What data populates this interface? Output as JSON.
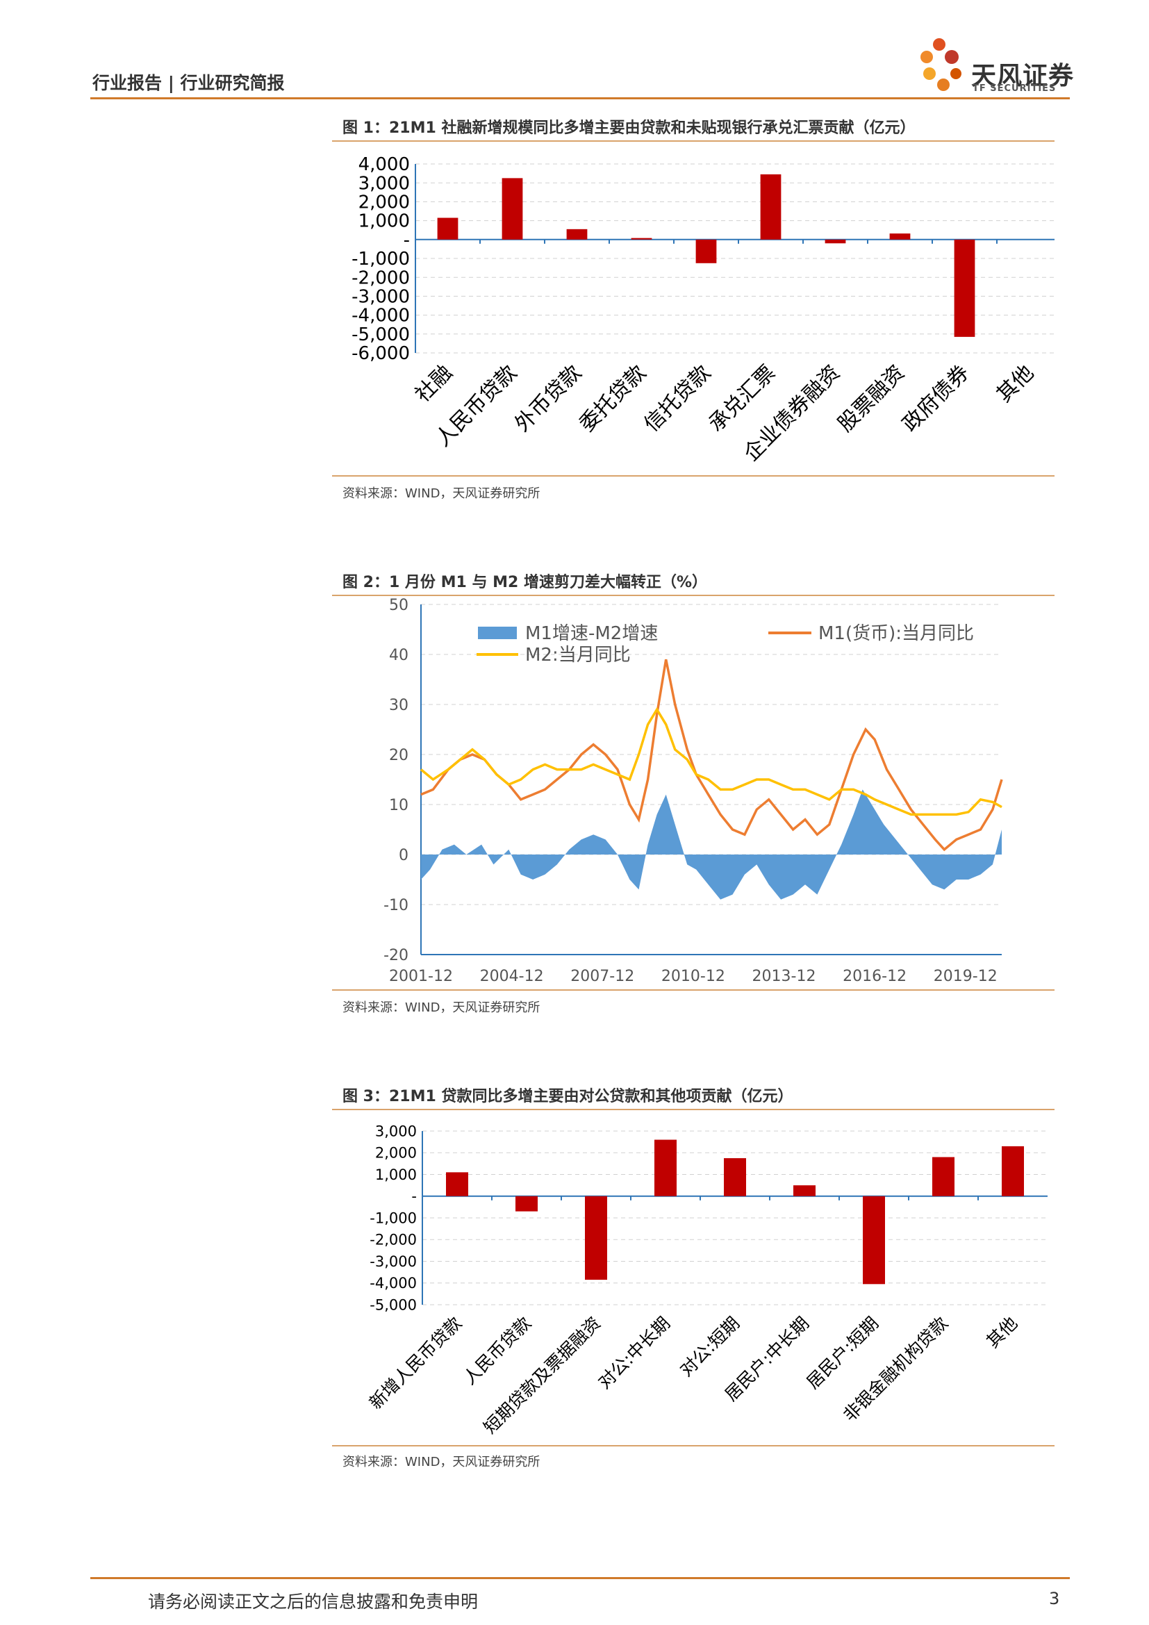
{
  "header": {
    "title": "行业报告 | 行业研究简报",
    "company_name": "天风证券",
    "company_en": "TF SECURITIES"
  },
  "figures": [
    {
      "title": "图 1：21M1 社融新增规模同比多增主要由贷款和未贴现银行承兑汇票贡献（亿元）",
      "source": "资料来源：WIND，天风证券研究所"
    },
    {
      "title": "图 2：1 月份 M1 与 M2 增速剪刀差大幅转正（%）",
      "source": "资料来源：WIND，天风证券研究所"
    },
    {
      "title": "图 3：21M1 贷款同比多增主要由对公贷款和其他项贡献（亿元）",
      "source": "资料来源：WIND，天风证券研究所"
    }
  ],
  "footer": {
    "disclaimer": "请务必阅读正文之后的信息披露和免责申明",
    "page_number": "3"
  },
  "colors": {
    "accent": "#d07a2a",
    "bar": "#c00000",
    "area": "#5b9bd5",
    "m1": "#ed7d31",
    "m2": "#ffc000"
  },
  "chart_data": [
    {
      "type": "bar",
      "categories": [
        "社融",
        "人民币贷款",
        "外币贷款",
        "委托贷款",
        "信托贷款",
        "承兑汇票",
        "企业债券融资",
        "股票融资",
        "政府债券",
        "其他"
      ],
      "values": [
        1150,
        3250,
        550,
        80,
        -1250,
        3450,
        -200,
        320,
        -5150,
        0
      ],
      "ylim": [
        -6000,
        4000
      ],
      "yticks": [
        4000,
        3000,
        2000,
        1000,
        0,
        -1000,
        -2000,
        -3000,
        -4000,
        -5000,
        -6000
      ],
      "ytick_labels": [
        "4,000",
        "3,000",
        "2,000",
        "1,000",
        "-",
        "-1,000",
        "-2,000",
        "-3,000",
        "-4,000",
        "-5,000",
        "-6,000"
      ],
      "grid": true
    },
    {
      "type": "line",
      "x_labels": [
        "2001-12",
        "2004-12",
        "2007-12",
        "2010-12",
        "2013-12",
        "2016-12",
        "2019-12"
      ],
      "ylim": [
        -20,
        50
      ],
      "yticks": [
        50,
        40,
        30,
        20,
        10,
        0,
        -10,
        -20
      ],
      "grid": true,
      "legend_position": "top",
      "series": [
        {
          "name": "M1增速-M2增速",
          "kind": "area",
          "points": [
            [
              2001.9,
              -5
            ],
            [
              2002.2,
              -3
            ],
            [
              2002.6,
              1
            ],
            [
              2003,
              2
            ],
            [
              2003.4,
              0
            ],
            [
              2003.9,
              2
            ],
            [
              2004.3,
              -2
            ],
            [
              2004.8,
              1
            ],
            [
              2005.2,
              -4
            ],
            [
              2005.6,
              -5
            ],
            [
              2006,
              -4
            ],
            [
              2006.4,
              -2
            ],
            [
              2006.8,
              1
            ],
            [
              2007.2,
              3
            ],
            [
              2007.6,
              4
            ],
            [
              2008,
              3
            ],
            [
              2008.4,
              0
            ],
            [
              2008.8,
              -5
            ],
            [
              2009.1,
              -7
            ],
            [
              2009.4,
              2
            ],
            [
              2009.7,
              8
            ],
            [
              2010,
              12
            ],
            [
              2010.3,
              6
            ],
            [
              2010.7,
              -2
            ],
            [
              2011,
              -3
            ],
            [
              2011.4,
              -6
            ],
            [
              2011.8,
              -9
            ],
            [
              2012.2,
              -8
            ],
            [
              2012.6,
              -4
            ],
            [
              2013,
              -2
            ],
            [
              2013.4,
              -6
            ],
            [
              2013.8,
              -9
            ],
            [
              2014.2,
              -8
            ],
            [
              2014.6,
              -6
            ],
            [
              2015,
              -8
            ],
            [
              2015.4,
              -3
            ],
            [
              2015.8,
              2
            ],
            [
              2016.2,
              8
            ],
            [
              2016.5,
              13
            ],
            [
              2016.8,
              10
            ],
            [
              2017.2,
              6
            ],
            [
              2017.6,
              3
            ],
            [
              2018,
              0
            ],
            [
              2018.4,
              -3
            ],
            [
              2018.8,
              -6
            ],
            [
              2019.2,
              -7
            ],
            [
              2019.6,
              -5
            ],
            [
              2020,
              -5
            ],
            [
              2020.4,
              -4
            ],
            [
              2020.8,
              -2
            ],
            [
              2021.1,
              5
            ]
          ]
        },
        {
          "name": "M1(货币):当月同比",
          "kind": "line",
          "points": [
            [
              2001.9,
              12
            ],
            [
              2002.3,
              13
            ],
            [
              2002.8,
              17
            ],
            [
              2003.2,
              19
            ],
            [
              2003.6,
              20
            ],
            [
              2004,
              19
            ],
            [
              2004.4,
              16
            ],
            [
              2004.8,
              14
            ],
            [
              2005.2,
              11
            ],
            [
              2005.6,
              12
            ],
            [
              2006,
              13
            ],
            [
              2006.4,
              15
            ],
            [
              2006.8,
              17
            ],
            [
              2007.2,
              20
            ],
            [
              2007.6,
              22
            ],
            [
              2008,
              20
            ],
            [
              2008.4,
              17
            ],
            [
              2008.8,
              10
            ],
            [
              2009.1,
              7
            ],
            [
              2009.4,
              15
            ],
            [
              2009.7,
              28
            ],
            [
              2010,
              39
            ],
            [
              2010.3,
              30
            ],
            [
              2010.7,
              21
            ],
            [
              2011,
              16
            ],
            [
              2011.4,
              12
            ],
            [
              2011.8,
              8
            ],
            [
              2012.2,
              5
            ],
            [
              2012.6,
              4
            ],
            [
              2013,
              9
            ],
            [
              2013.4,
              11
            ],
            [
              2013.8,
              8
            ],
            [
              2014.2,
              5
            ],
            [
              2014.6,
              7
            ],
            [
              2015,
              4
            ],
            [
              2015.4,
              6
            ],
            [
              2015.8,
              13
            ],
            [
              2016.2,
              20
            ],
            [
              2016.6,
              25
            ],
            [
              2016.9,
              23
            ],
            [
              2017.3,
              17
            ],
            [
              2017.7,
              13
            ],
            [
              2018.1,
              9
            ],
            [
              2018.5,
              6
            ],
            [
              2018.9,
              3
            ],
            [
              2019.2,
              1
            ],
            [
              2019.6,
              3
            ],
            [
              2020,
              4
            ],
            [
              2020.4,
              5
            ],
            [
              2020.8,
              9
            ],
            [
              2021.1,
              15
            ]
          ]
        },
        {
          "name": "M2:当月同比",
          "kind": "line",
          "points": [
            [
              2001.9,
              17
            ],
            [
              2002.3,
              15
            ],
            [
              2002.8,
              17
            ],
            [
              2003.2,
              19
            ],
            [
              2003.6,
              21
            ],
            [
              2004,
              19
            ],
            [
              2004.4,
              16
            ],
            [
              2004.8,
              14
            ],
            [
              2005.2,
              15
            ],
            [
              2005.6,
              17
            ],
            [
              2006,
              18
            ],
            [
              2006.4,
              17
            ],
            [
              2006.8,
              17
            ],
            [
              2007.2,
              17
            ],
            [
              2007.6,
              18
            ],
            [
              2008,
              17
            ],
            [
              2008.4,
              16
            ],
            [
              2008.8,
              15
            ],
            [
              2009.1,
              20
            ],
            [
              2009.4,
              26
            ],
            [
              2009.7,
              29
            ],
            [
              2010,
              26
            ],
            [
              2010.3,
              21
            ],
            [
              2010.7,
              19
            ],
            [
              2011,
              16
            ],
            [
              2011.4,
              15
            ],
            [
              2011.8,
              13
            ],
            [
              2012.2,
              13
            ],
            [
              2012.6,
              14
            ],
            [
              2013,
              15
            ],
            [
              2013.4,
              15
            ],
            [
              2013.8,
              14
            ],
            [
              2014.2,
              13
            ],
            [
              2014.6,
              13
            ],
            [
              2015,
              12
            ],
            [
              2015.4,
              11
            ],
            [
              2015.8,
              13
            ],
            [
              2016.2,
              13
            ],
            [
              2016.6,
              12
            ],
            [
              2016.9,
              11
            ],
            [
              2017.3,
              10
            ],
            [
              2017.7,
              9
            ],
            [
              2018.1,
              8
            ],
            [
              2018.5,
              8
            ],
            [
              2018.9,
              8
            ],
            [
              2019.2,
              8
            ],
            [
              2019.6,
              8
            ],
            [
              2020,
              8.5
            ],
            [
              2020.4,
              11
            ],
            [
              2020.8,
              10.5
            ],
            [
              2021.1,
              9.5
            ]
          ]
        }
      ]
    },
    {
      "type": "bar",
      "categories": [
        "新增人民币贷款",
        "人民币贷款",
        "短期贷款及票据融资",
        "对公:中长期",
        "对公:短期",
        "居民户:中长期",
        "居民户:短期",
        "非银金融机构贷款",
        "其他"
      ],
      "values": [
        1100,
        -700,
        -3850,
        2600,
        1750,
        500,
        -4050,
        1800,
        2300
      ],
      "ylim": [
        -5000,
        3000
      ],
      "yticks": [
        3000,
        2000,
        1000,
        0,
        -1000,
        -2000,
        -3000,
        -4000,
        -5000
      ],
      "ytick_labels": [
        "3,000",
        "2,000",
        "1,000",
        "-",
        "-1,000",
        "-2,000",
        "-3,000",
        "-4,000",
        "-5,000"
      ],
      "grid": true
    }
  ]
}
